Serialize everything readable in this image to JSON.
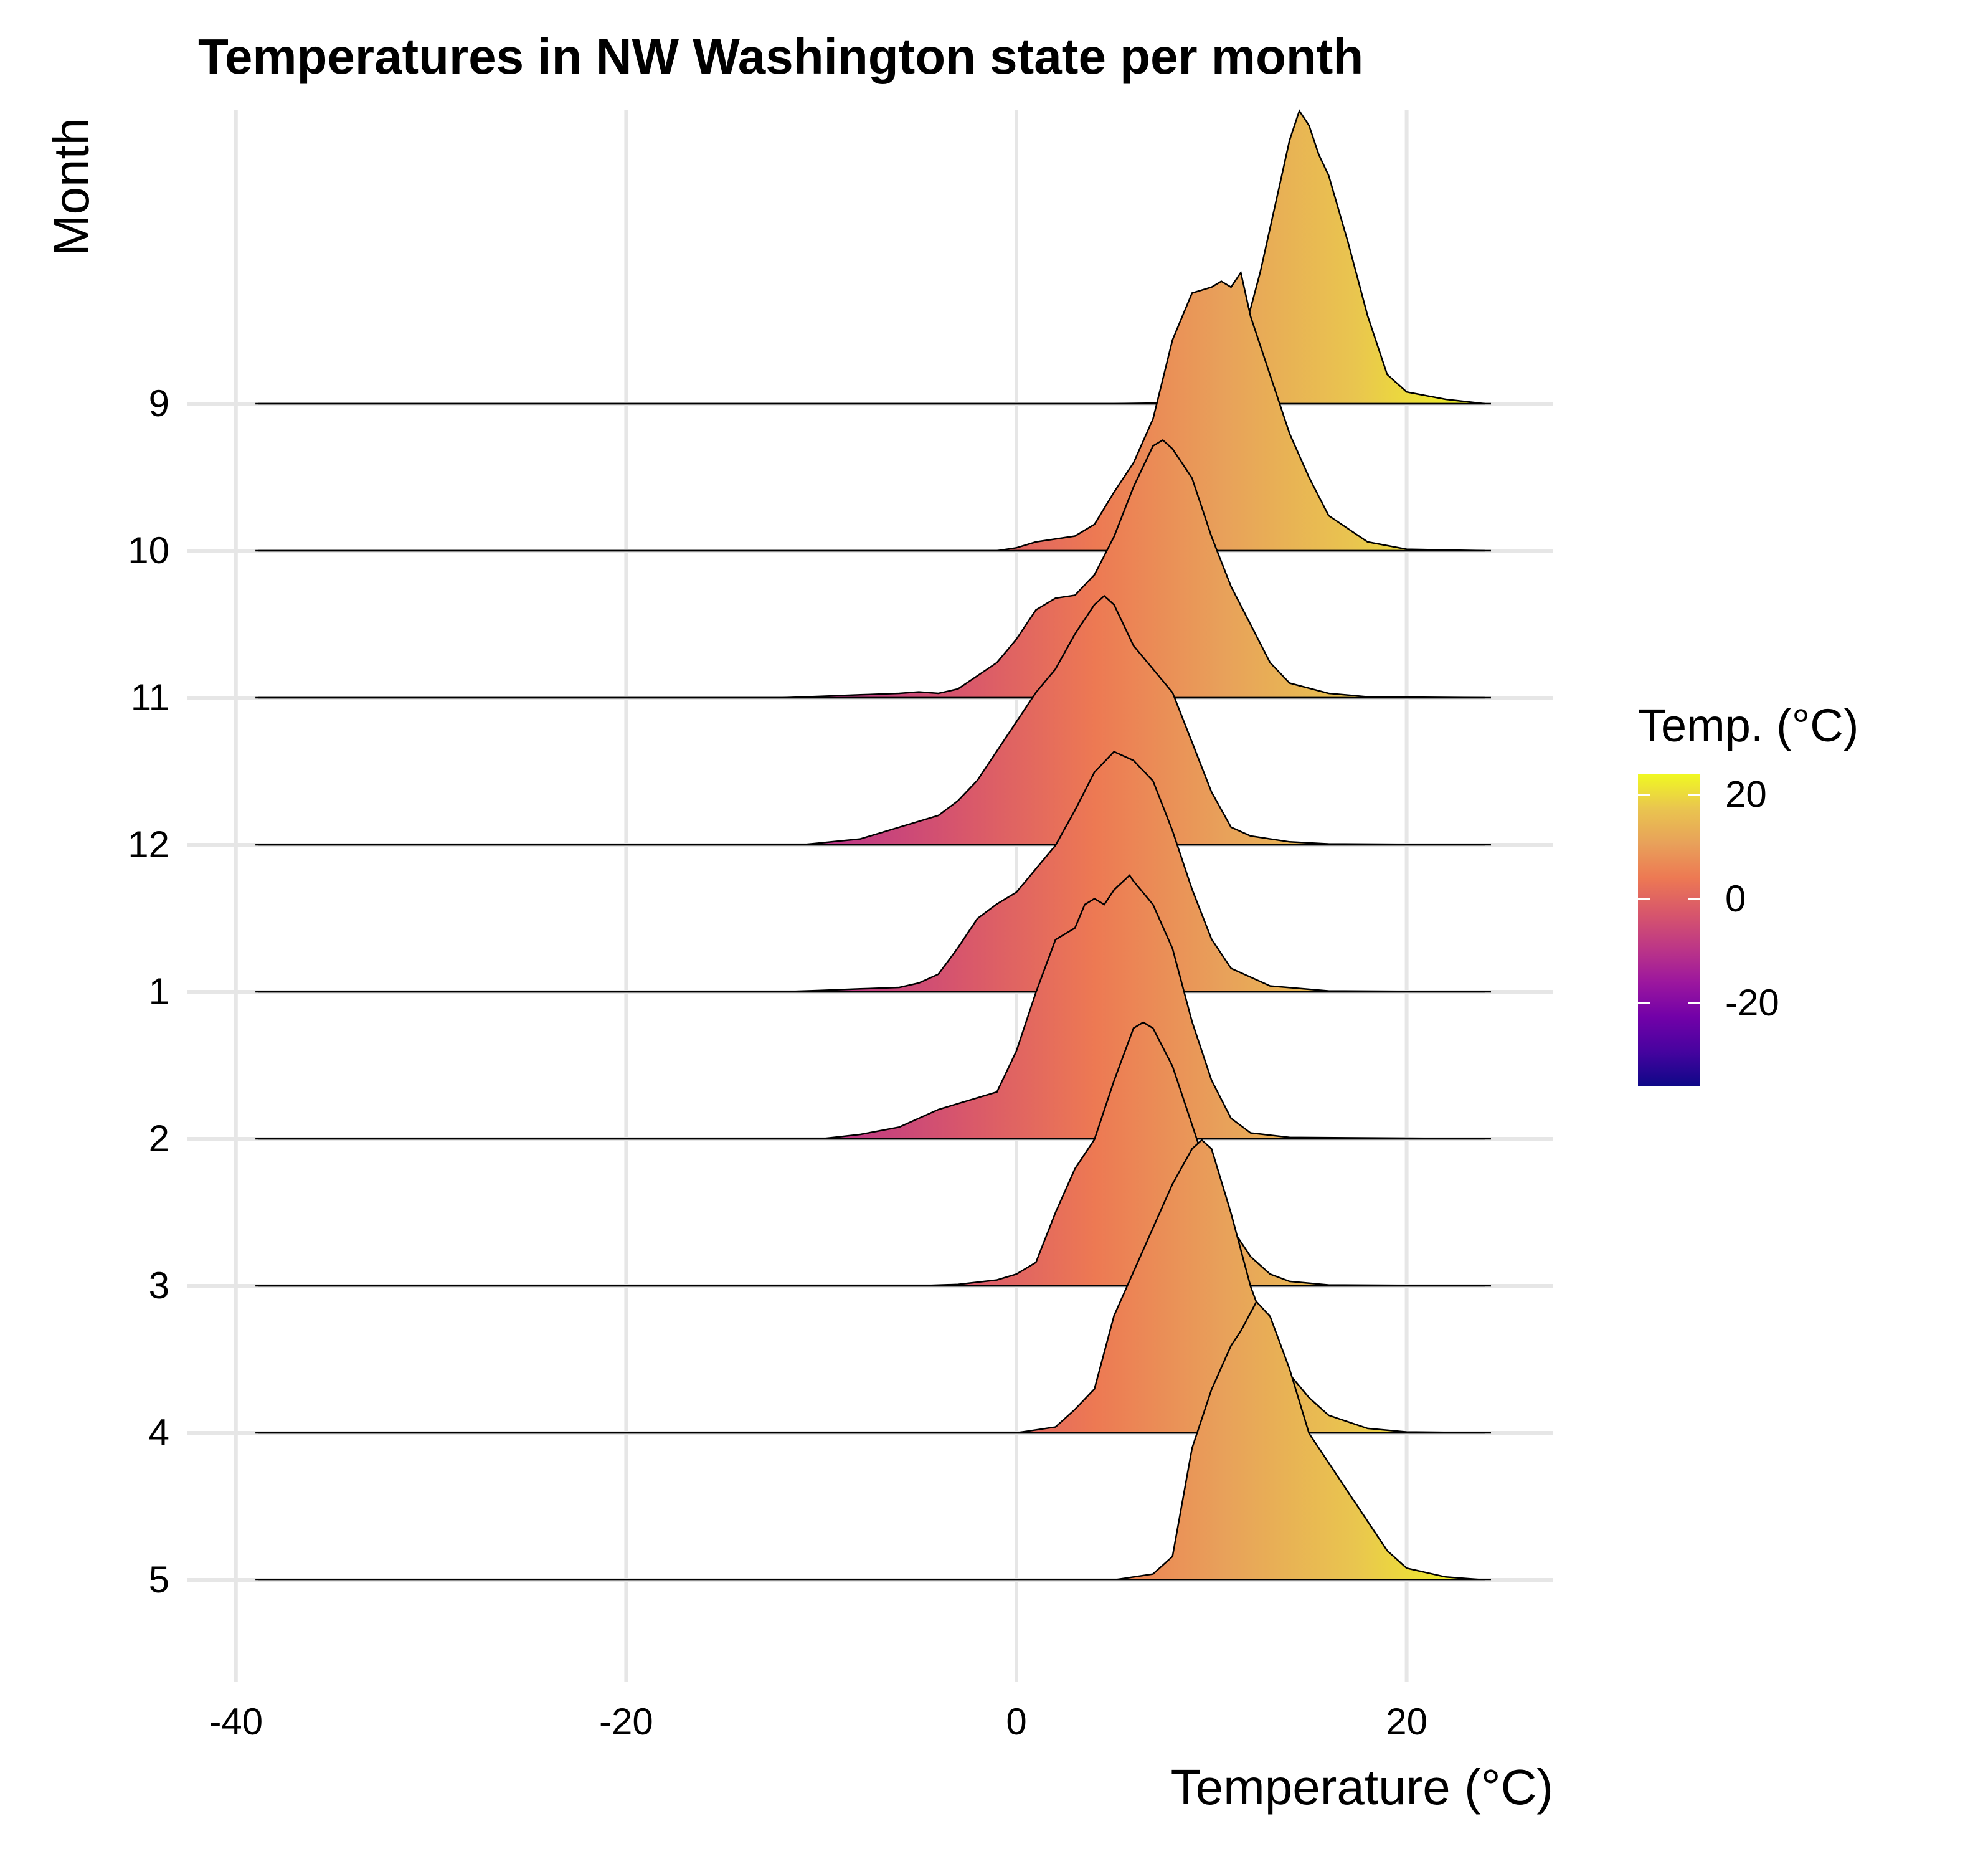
{
  "chart_data": {
    "type": "ridgeline",
    "title": "Temperatures in NW Washington state per month",
    "xlabel": "Temperature (°C)",
    "ylabel": "Month",
    "xlim": [
      -40,
      27
    ],
    "x_ticks": [
      -40,
      -20,
      0,
      20
    ],
    "x_tick_labels": [
      "-40",
      "-20",
      "0",
      "20"
    ],
    "categories": [
      "9",
      "10",
      "11",
      "12",
      "1",
      "2",
      "3",
      "4",
      "5"
    ],
    "grid": true,
    "legend": {
      "title": "Temp. (°C)",
      "position": "right",
      "range": [
        -36,
        24
      ],
      "ticks": [
        20,
        0,
        -20
      ],
      "tick_labels": [
        "20",
        "0",
        "-20"
      ],
      "colormap": "plasma",
      "colors": [
        "#0d0887",
        "#46039f",
        "#7201a8",
        "#9c179e",
        "#bd3786",
        "#d8576b",
        "#ed7953",
        "#e8a15a",
        "#e9c54f",
        "#f0f921"
      ]
    },
    "series": [
      {
        "name": "9",
        "peak": 14.5,
        "points": [
          [
            -39,
            0
          ],
          [
            5,
            0
          ],
          [
            8,
            0.003
          ],
          [
            9.5,
            0.02
          ],
          [
            10.5,
            0.08
          ],
          [
            11.5,
            0.2
          ],
          [
            12.5,
            0.45
          ],
          [
            13.5,
            0.75
          ],
          [
            14,
            0.9
          ],
          [
            14.5,
            1.0
          ],
          [
            15,
            0.95
          ],
          [
            15.5,
            0.85
          ],
          [
            16,
            0.78
          ],
          [
            17,
            0.55
          ],
          [
            18,
            0.3
          ],
          [
            19,
            0.1
          ],
          [
            20,
            0.04
          ],
          [
            22,
            0.015
          ],
          [
            24,
            0
          ]
        ]
      },
      {
        "name": "10",
        "peak": 11.5,
        "points": [
          [
            -39,
            0
          ],
          [
            -1,
            0
          ],
          [
            0,
            0.01
          ],
          [
            1,
            0.03
          ],
          [
            3,
            0.05
          ],
          [
            4,
            0.09
          ],
          [
            5,
            0.2
          ],
          [
            6,
            0.3
          ],
          [
            7,
            0.45
          ],
          [
            8,
            0.72
          ],
          [
            9,
            0.88
          ],
          [
            10,
            0.9
          ],
          [
            10.5,
            0.92
          ],
          [
            11,
            0.9
          ],
          [
            11.5,
            0.95
          ],
          [
            12,
            0.8
          ],
          [
            13,
            0.6
          ],
          [
            14,
            0.4
          ],
          [
            15,
            0.25
          ],
          [
            16,
            0.12
          ],
          [
            18,
            0.03
          ],
          [
            20,
            0.005
          ],
          [
            24,
            0
          ]
        ]
      },
      {
        "name": "11",
        "peak": 7.5,
        "points": [
          [
            -39,
            0
          ],
          [
            -12,
            0
          ],
          [
            -10,
            0.005
          ],
          [
            -8,
            0.01
          ],
          [
            -6,
            0.015
          ],
          [
            -5,
            0.02
          ],
          [
            -4,
            0.015
          ],
          [
            -3,
            0.03
          ],
          [
            -1,
            0.12
          ],
          [
            0,
            0.2
          ],
          [
            1,
            0.3
          ],
          [
            2,
            0.34
          ],
          [
            3,
            0.35
          ],
          [
            4,
            0.42
          ],
          [
            5,
            0.55
          ],
          [
            6,
            0.72
          ],
          [
            7,
            0.86
          ],
          [
            7.5,
            0.88
          ],
          [
            8,
            0.85
          ],
          [
            9,
            0.75
          ],
          [
            10,
            0.55
          ],
          [
            11,
            0.38
          ],
          [
            12,
            0.25
          ],
          [
            13,
            0.12
          ],
          [
            14,
            0.05
          ],
          [
            16,
            0.015
          ],
          [
            18,
            0.003
          ],
          [
            24,
            0
          ]
        ]
      },
      {
        "name": "12",
        "peak": 4.5,
        "points": [
          [
            -39,
            0
          ],
          [
            -11,
            0
          ],
          [
            -8,
            0.02
          ],
          [
            -6,
            0.06
          ],
          [
            -4,
            0.1
          ],
          [
            -3,
            0.15
          ],
          [
            -2,
            0.22
          ],
          [
            -1,
            0.32
          ],
          [
            0,
            0.42
          ],
          [
            1,
            0.52
          ],
          [
            2,
            0.6
          ],
          [
            3,
            0.72
          ],
          [
            4,
            0.82
          ],
          [
            4.5,
            0.85
          ],
          [
            5,
            0.82
          ],
          [
            6,
            0.68
          ],
          [
            7,
            0.6
          ],
          [
            8,
            0.52
          ],
          [
            9,
            0.35
          ],
          [
            10,
            0.18
          ],
          [
            11,
            0.06
          ],
          [
            12,
            0.03
          ],
          [
            14,
            0.01
          ],
          [
            16,
            0.003
          ],
          [
            24,
            0
          ]
        ]
      },
      {
        "name": "1",
        "peak": 5.0,
        "points": [
          [
            -39,
            0
          ],
          [
            -12,
            0
          ],
          [
            -10,
            0.005
          ],
          [
            -8,
            0.01
          ],
          [
            -6,
            0.015
          ],
          [
            -5,
            0.03
          ],
          [
            -4,
            0.06
          ],
          [
            -3,
            0.15
          ],
          [
            -2,
            0.25
          ],
          [
            -1,
            0.3
          ],
          [
            0,
            0.34
          ],
          [
            1,
            0.42
          ],
          [
            2,
            0.5
          ],
          [
            3,
            0.62
          ],
          [
            4,
            0.75
          ],
          [
            5,
            0.82
          ],
          [
            6,
            0.79
          ],
          [
            7,
            0.72
          ],
          [
            8,
            0.55
          ],
          [
            9,
            0.35
          ],
          [
            10,
            0.18
          ],
          [
            11,
            0.08
          ],
          [
            12,
            0.05
          ],
          [
            13,
            0.02
          ],
          [
            16,
            0.003
          ],
          [
            24,
            0
          ]
        ]
      },
      {
        "name": "2",
        "peak": 5.8,
        "points": [
          [
            -39,
            0
          ],
          [
            -10,
            0
          ],
          [
            -8,
            0.015
          ],
          [
            -6,
            0.04
          ],
          [
            -4,
            0.1
          ],
          [
            -3,
            0.12
          ],
          [
            -1,
            0.16
          ],
          [
            0,
            0.3
          ],
          [
            1,
            0.5
          ],
          [
            2,
            0.68
          ],
          [
            3,
            0.72
          ],
          [
            3.5,
            0.8
          ],
          [
            4,
            0.82
          ],
          [
            4.5,
            0.8
          ],
          [
            5,
            0.85
          ],
          [
            5.8,
            0.9
          ],
          [
            6,
            0.88
          ],
          [
            7,
            0.8
          ],
          [
            8,
            0.65
          ],
          [
            9,
            0.4
          ],
          [
            10,
            0.2
          ],
          [
            11,
            0.07
          ],
          [
            12,
            0.02
          ],
          [
            14,
            0.005
          ],
          [
            24,
            0
          ]
        ]
      },
      {
        "name": "3",
        "peak": 6.5,
        "points": [
          [
            -39,
            0
          ],
          [
            -5,
            0
          ],
          [
            -3,
            0.005
          ],
          [
            -1,
            0.02
          ],
          [
            0,
            0.04
          ],
          [
            1,
            0.08
          ],
          [
            2,
            0.25
          ],
          [
            3,
            0.4
          ],
          [
            4,
            0.5
          ],
          [
            5,
            0.7
          ],
          [
            6,
            0.88
          ],
          [
            6.5,
            0.9
          ],
          [
            7,
            0.88
          ],
          [
            8,
            0.75
          ],
          [
            9,
            0.55
          ],
          [
            10,
            0.35
          ],
          [
            11,
            0.2
          ],
          [
            12,
            0.1
          ],
          [
            13,
            0.04
          ],
          [
            14,
            0.015
          ],
          [
            16,
            0.003
          ],
          [
            24,
            0
          ]
        ]
      },
      {
        "name": "4",
        "peak": 9.5,
        "points": [
          [
            -39,
            0
          ],
          [
            0,
            0
          ],
          [
            1,
            0.01
          ],
          [
            2,
            0.02
          ],
          [
            3,
            0.08
          ],
          [
            4,
            0.15
          ],
          [
            5,
            0.4
          ],
          [
            6,
            0.55
          ],
          [
            7,
            0.7
          ],
          [
            8,
            0.85
          ],
          [
            9,
            0.97
          ],
          [
            9.5,
            1.0
          ],
          [
            10,
            0.97
          ],
          [
            11,
            0.75
          ],
          [
            12,
            0.5
          ],
          [
            13,
            0.32
          ],
          [
            14,
            0.2
          ],
          [
            15,
            0.12
          ],
          [
            16,
            0.06
          ],
          [
            18,
            0.015
          ],
          [
            20,
            0.003
          ],
          [
            24,
            0
          ]
        ]
      },
      {
        "name": "5",
        "peak": 12.3,
        "points": [
          [
            -39,
            0
          ],
          [
            5,
            0
          ],
          [
            7,
            0.02
          ],
          [
            8,
            0.08
          ],
          [
            9,
            0.45
          ],
          [
            10,
            0.65
          ],
          [
            11,
            0.8
          ],
          [
            11.5,
            0.85
          ],
          [
            12.3,
            0.95
          ],
          [
            13,
            0.9
          ],
          [
            14,
            0.72
          ],
          [
            15,
            0.5
          ],
          [
            16,
            0.4
          ],
          [
            17,
            0.3
          ],
          [
            18,
            0.2
          ],
          [
            19,
            0.1
          ],
          [
            20,
            0.04
          ],
          [
            22,
            0.01
          ],
          [
            24,
            0
          ]
        ]
      }
    ]
  }
}
